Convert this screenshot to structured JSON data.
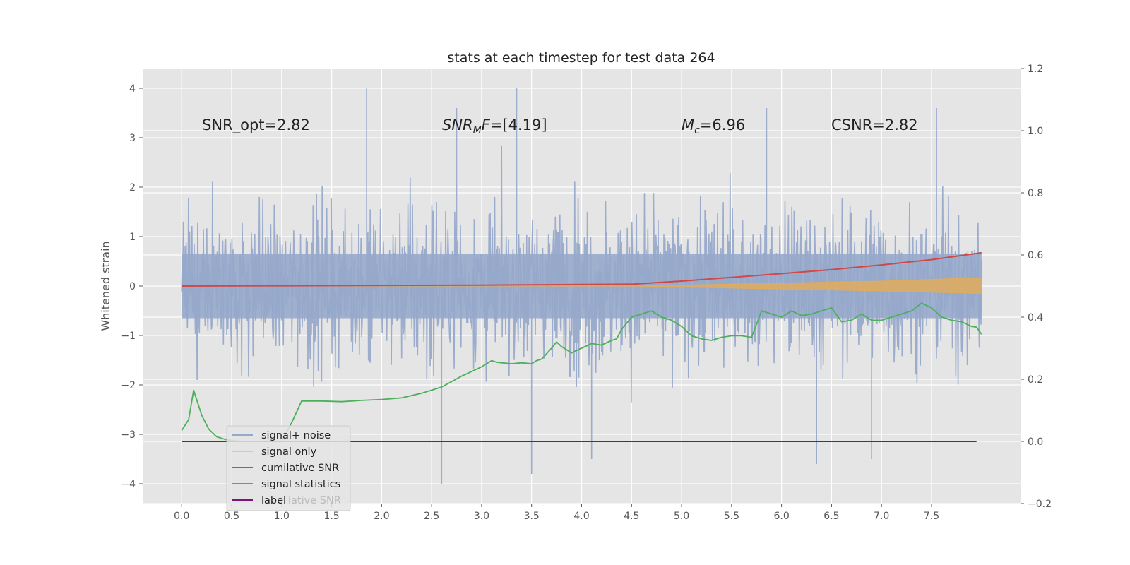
{
  "chart_data": {
    "type": "line",
    "title": "stats at each timestep for test data 264",
    "ylabel": "Whitened strain",
    "xlabel": "",
    "xlim": [
      -0.39,
      8.39
    ],
    "ylim": [
      -4.4,
      4.4
    ],
    "y2lim": [
      -0.2,
      1.2
    ],
    "x_ticks": [
      0.0,
      0.5,
      1.0,
      1.5,
      2.0,
      2.5,
      3.0,
      3.5,
      4.0,
      4.5,
      5.0,
      5.5,
      6.0,
      6.5,
      7.0,
      7.5
    ],
    "x_tick_labels": [
      "0.0",
      "0.5",
      "1.0",
      "1.5",
      "2.0",
      "2.5",
      "3.0",
      "3.5",
      "4.0",
      "4.5",
      "5.0",
      "5.5",
      "6.0",
      "6.5",
      "7.0",
      "7.5"
    ],
    "y_ticks": [
      -4,
      -3,
      -2,
      -1,
      0,
      1,
      2,
      3,
      4
    ],
    "y_tick_labels": [
      "−4",
      "−3",
      "−2",
      "−1",
      "0",
      "1",
      "2",
      "3",
      "4"
    ],
    "y2_ticks": [
      -0.2,
      0.0,
      0.2,
      0.4,
      0.6,
      0.8,
      1.0,
      1.2
    ],
    "y2_tick_labels": [
      "−0.2",
      "0.0",
      "0.2",
      "0.4",
      "0.6",
      "0.8",
      "1.0",
      "1.2"
    ],
    "grid": true,
    "legend_position": "lower-left",
    "legend": [
      {
        "label": "signal+ noise",
        "color": "#97a9cb"
      },
      {
        "label": "signal only",
        "color": "#f7c85a"
      },
      {
        "label": "cumilative SNR",
        "color": "#d04848"
      },
      {
        "label": "signal statistics",
        "color": "#4caf5a"
      },
      {
        "label": "label",
        "color": "#7a137a"
      }
    ],
    "legend_hidden_text": "lative SNR",
    "annotations": [
      {
        "text": "SNR_opt=2.82",
        "x": 0.2,
        "y": 3.2
      },
      {
        "text": "=[4.19]",
        "math_base": "SNR",
        "math_sub": "M",
        "math_base2": "F",
        "x": 2.6,
        "y": 3.2
      },
      {
        "text": "=6.96",
        "math_base": "M",
        "math_sub": "c",
        "x": 5.0,
        "y": 3.2
      },
      {
        "text": "CSNR=2.82",
        "x": 6.5,
        "y": 3.2
      }
    ],
    "noise_envelope": {
      "name": "signal+ noise",
      "x_range": [
        0.0,
        8.0
      ],
      "y_center": 0.0,
      "typical_range": [
        -2.5,
        2.5
      ],
      "peaks": [
        [
          1.85,
          4.0
        ],
        [
          3.35,
          4.0
        ],
        [
          2.75,
          3.6
        ],
        [
          5.85,
          3.6
        ],
        [
          7.55,
          3.6
        ]
      ],
      "troughs": [
        [
          2.6,
          -4.0
        ],
        [
          3.5,
          -3.8
        ],
        [
          6.35,
          -3.6
        ],
        [
          6.9,
          -3.5
        ],
        [
          4.1,
          -3.5
        ]
      ]
    },
    "series": [
      {
        "name": "signal only",
        "axis": "left",
        "band": true,
        "x": [
          0.0,
          4.5,
          5.0,
          6.0,
          7.0,
          8.0
        ],
        "upper": [
          0.0,
          0.0,
          0.02,
          0.06,
          0.1,
          0.17
        ],
        "lower": [
          0.0,
          0.0,
          -0.02,
          -0.06,
          -0.1,
          -0.15
        ]
      },
      {
        "name": "cumilative SNR",
        "axis": "right",
        "x": [
          0.0,
          1.0,
          2.0,
          3.0,
          4.0,
          4.5,
          5.0,
          5.5,
          6.0,
          6.5,
          7.0,
          7.5,
          8.0
        ],
        "values": [
          0.5,
          0.501,
          0.502,
          0.503,
          0.505,
          0.506,
          0.516,
          0.528,
          0.54,
          0.553,
          0.568,
          0.585,
          0.607
        ]
      },
      {
        "name": "signal statistics",
        "axis": "right",
        "x": [
          0.0,
          0.07,
          0.12,
          0.2,
          0.27,
          0.35,
          0.45,
          0.6,
          0.8,
          1.0,
          1.1,
          1.2,
          1.4,
          1.6,
          1.8,
          2.0,
          2.2,
          2.4,
          2.6,
          2.8,
          3.0,
          3.1,
          3.15,
          3.2,
          3.3,
          3.4,
          3.5,
          3.55,
          3.6,
          3.7,
          3.75,
          3.8,
          3.9,
          4.0,
          4.1,
          4.2,
          4.3,
          4.35,
          4.4,
          4.5,
          4.6,
          4.7,
          4.8,
          4.9,
          5.0,
          5.1,
          5.2,
          5.3,
          5.4,
          5.5,
          5.6,
          5.7,
          5.8,
          5.9,
          6.0,
          6.1,
          6.2,
          6.3,
          6.4,
          6.5,
          6.6,
          6.7,
          6.8,
          6.9,
          7.0,
          7.1,
          7.2,
          7.3,
          7.4,
          7.5,
          7.6,
          7.7,
          7.8,
          7.9,
          7.95,
          8.0
        ],
        "values": [
          0.035,
          0.07,
          0.165,
          0.085,
          0.04,
          0.015,
          0.005,
          0.0,
          0.0,
          0.0,
          0.06,
          0.13,
          0.13,
          0.128,
          0.132,
          0.135,
          0.14,
          0.155,
          0.175,
          0.21,
          0.24,
          0.26,
          0.255,
          0.253,
          0.25,
          0.253,
          0.25,
          0.26,
          0.265,
          0.3,
          0.32,
          0.305,
          0.285,
          0.3,
          0.315,
          0.31,
          0.325,
          0.33,
          0.36,
          0.4,
          0.41,
          0.42,
          0.4,
          0.39,
          0.37,
          0.34,
          0.33,
          0.325,
          0.335,
          0.34,
          0.34,
          0.335,
          0.42,
          0.41,
          0.4,
          0.42,
          0.405,
          0.41,
          0.42,
          0.43,
          0.385,
          0.39,
          0.41,
          0.39,
          0.39,
          0.4,
          0.41,
          0.42,
          0.445,
          0.43,
          0.4,
          0.39,
          0.385,
          0.37,
          0.368,
          0.345
        ]
      },
      {
        "name": "label",
        "axis": "right",
        "x": [
          0.0,
          7.95
        ],
        "values": [
          0.0,
          0.0
        ]
      }
    ]
  },
  "colors": {
    "plot_background": "#e5e5e5",
    "grid": "#ffffff",
    "noise": "#97a9cb",
    "signal": "#e0ac5a",
    "cumulative_snr": "#d04848",
    "statistics": "#4caf5a",
    "label": "#7a137a"
  }
}
